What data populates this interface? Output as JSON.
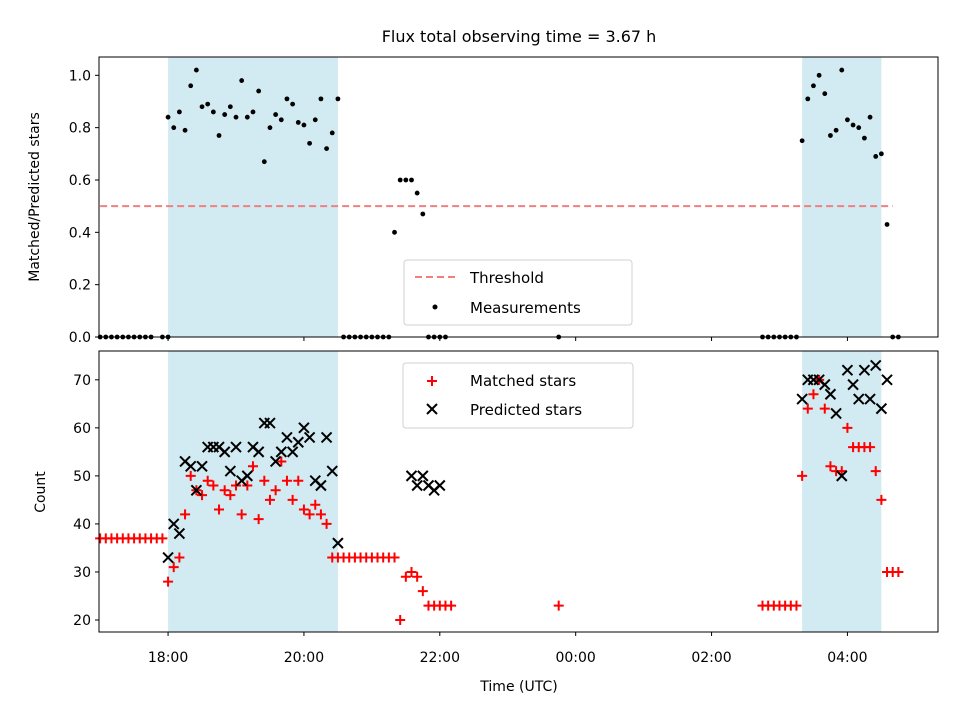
{
  "chart_data": [
    {
      "type": "scatter",
      "title": "Flux total observing time = 3.67 h",
      "xlabel": "",
      "ylabel": "Matched/Predicted stars",
      "xlim": [
        "16:59",
        "05:20"
      ],
      "ylim": [
        0,
        1.07
      ],
      "yticks": [
        0.0,
        0.2,
        0.4,
        0.6,
        0.8,
        1.0
      ],
      "ytick_labels": [
        "0.0",
        "0.2",
        "0.4",
        "0.6",
        "0.8",
        "1.0"
      ],
      "shaded_intervals": [
        [
          "18:00",
          "20:30"
        ],
        [
          "03:20",
          "04:30"
        ]
      ],
      "shade_color": "#add8e6",
      "legend_position": "lower center",
      "threshold": {
        "name": "Threshold",
        "value": 0.5,
        "x_range": [
          "17:00",
          "04:40"
        ],
        "color": "#f08080",
        "style": "dashed"
      },
      "series": [
        {
          "name": "Measurements",
          "marker": "dot",
          "color": "#000000",
          "x": [
            "17:00",
            "17:05",
            "17:10",
            "17:15",
            "17:20",
            "17:25",
            "17:30",
            "17:35",
            "17:40",
            "17:45",
            "17:55",
            "18:00",
            "18:00",
            "18:05",
            "18:10",
            "18:15",
            "18:20",
            "18:25",
            "18:30",
            "18:35",
            "18:40",
            "18:45",
            "18:50",
            "18:55",
            "19:00",
            "19:05",
            "19:10",
            "19:15",
            "19:20",
            "19:25",
            "19:30",
            "19:35",
            "19:40",
            "19:45",
            "19:50",
            "19:55",
            "20:00",
            "20:05",
            "20:10",
            "20:15",
            "20:20",
            "20:25",
            "20:30",
            "20:35",
            "20:40",
            "20:45",
            "20:50",
            "20:55",
            "21:00",
            "21:05",
            "21:10",
            "21:15",
            "21:20",
            "21:25",
            "21:30",
            "21:35",
            "21:40",
            "21:45",
            "21:50",
            "21:55",
            "22:00",
            "22:05",
            "23:45",
            "02:45",
            "02:50",
            "02:55",
            "03:00",
            "03:05",
            "03:10",
            "03:15",
            "03:20",
            "03:25",
            "03:30",
            "03:35",
            "03:40",
            "03:45",
            "03:50",
            "03:55",
            "04:00",
            "04:05",
            "04:10",
            "04:15",
            "04:20",
            "04:25",
            "04:30",
            "04:35",
            "04:40",
            "04:45"
          ],
          "y": [
            0,
            0,
            0,
            0,
            0,
            0,
            0,
            0,
            0,
            0,
            0,
            0,
            0.84,
            0.8,
            0.86,
            0.79,
            0.96,
            1.02,
            0.88,
            0.89,
            0.86,
            0.77,
            0.85,
            0.88,
            0.84,
            0.98,
            0.84,
            0.86,
            0.94,
            0.67,
            0.8,
            0.85,
            0.83,
            0.91,
            0.89,
            0.82,
            0.81,
            0.74,
            0.83,
            0.91,
            0.72,
            0.78,
            0.91,
            0,
            0,
            0,
            0,
            0,
            0,
            0,
            0,
            0,
            0.4,
            0.6,
            0.6,
            0.6,
            0.55,
            0.47,
            0,
            0,
            0,
            0,
            0,
            0,
            0,
            0,
            0,
            0,
            0,
            0,
            0.75,
            0.91,
            0.96,
            1.0,
            0.93,
            0.77,
            0.79,
            1.02,
            0.83,
            0.81,
            0.8,
            0.76,
            0.84,
            0.69,
            0.7,
            0.43,
            0,
            0
          ]
        }
      ]
    },
    {
      "type": "scatter",
      "title": "",
      "xlabel": "Time (UTC)",
      "ylabel": "Count",
      "xlim": [
        "16:59",
        "05:20"
      ],
      "ylim": [
        17.5,
        76
      ],
      "yticks": [
        20,
        30,
        40,
        50,
        60,
        70
      ],
      "ytick_labels": [
        "20",
        "30",
        "40",
        "50",
        "60",
        "70"
      ],
      "xticks": [
        "18:00",
        "20:00",
        "22:00",
        "00:00",
        "02:00",
        "04:00"
      ],
      "xtick_labels": [
        "18:00",
        "20:00",
        "22:00",
        "00:00",
        "02:00",
        "04:00"
      ],
      "shaded_intervals": [
        [
          "18:00",
          "20:30"
        ],
        [
          "03:20",
          "04:30"
        ]
      ],
      "shade_color": "#add8e6",
      "legend_position": "upper center",
      "series": [
        {
          "name": "Matched stars",
          "marker": "plus",
          "color": "#ff0000",
          "x": [
            "17:00",
            "17:05",
            "17:10",
            "17:15",
            "17:20",
            "17:25",
            "17:30",
            "17:35",
            "17:40",
            "17:45",
            "17:50",
            "17:55",
            "18:00",
            "18:05",
            "18:10",
            "18:15",
            "18:20",
            "18:25",
            "18:30",
            "18:35",
            "18:40",
            "18:45",
            "18:50",
            "18:55",
            "19:00",
            "19:05",
            "19:10",
            "19:15",
            "19:20",
            "19:25",
            "19:30",
            "19:35",
            "19:40",
            "19:45",
            "19:50",
            "19:55",
            "20:00",
            "20:05",
            "20:10",
            "20:15",
            "20:20",
            "20:25",
            "20:30",
            "20:35",
            "20:40",
            "20:45",
            "20:50",
            "20:55",
            "21:00",
            "21:05",
            "21:10",
            "21:15",
            "21:20",
            "21:25",
            "21:30",
            "21:35",
            "21:40",
            "21:45",
            "21:50",
            "21:55",
            "22:00",
            "22:05",
            "22:10",
            "23:45",
            "02:45",
            "02:50",
            "02:55",
            "03:00",
            "03:05",
            "03:10",
            "03:15",
            "03:20",
            "03:25",
            "03:30",
            "03:35",
            "03:40",
            "03:45",
            "03:50",
            "03:55",
            "04:00",
            "04:05",
            "04:10",
            "04:15",
            "04:20",
            "04:25",
            "04:30",
            "04:35",
            "04:40",
            "04:45"
          ],
          "y": [
            37,
            37,
            37,
            37,
            37,
            37,
            37,
            37,
            37,
            37,
            37,
            37,
            28,
            31,
            33,
            42,
            50,
            47,
            46,
            49,
            48,
            43,
            47,
            46,
            48,
            42,
            48,
            52,
            41,
            49,
            45,
            47,
            53,
            49,
            45,
            49,
            43,
            42,
            44,
            42,
            40,
            33,
            33,
            33,
            33,
            33,
            33,
            33,
            33,
            33,
            33,
            33,
            33,
            20,
            29,
            30,
            29,
            26,
            23,
            23,
            23,
            23,
            23,
            23,
            23,
            23,
            23,
            23,
            23,
            23,
            23,
            50,
            64,
            67,
            70,
            64,
            52,
            51,
            51,
            60,
            56,
            56,
            56,
            56,
            51,
            45,
            30,
            30,
            30
          ],
          "x_extra": []
        },
        {
          "name": "Predicted stars",
          "marker": "x",
          "color": "#000000",
          "x": [
            "18:00",
            "18:05",
            "18:10",
            "18:15",
            "18:20",
            "18:25",
            "18:30",
            "18:35",
            "18:40",
            "18:45",
            "18:50",
            "18:55",
            "19:00",
            "19:05",
            "19:10",
            "19:15",
            "19:20",
            "19:25",
            "19:30",
            "19:35",
            "19:40",
            "19:45",
            "19:50",
            "19:55",
            "20:00",
            "20:05",
            "20:10",
            "20:15",
            "20:20",
            "20:25",
            "20:30",
            "21:35",
            "21:40",
            "21:45",
            "21:50",
            "21:55",
            "22:00",
            "03:20",
            "03:25",
            "03:30",
            "03:35",
            "03:40",
            "03:45",
            "03:50",
            "03:55",
            "04:00",
            "04:05",
            "04:10",
            "04:15",
            "04:20",
            "04:25",
            "04:30",
            "04:35"
          ],
          "y": [
            33,
            40,
            38,
            53,
            52,
            47,
            52,
            56,
            56,
            56,
            55,
            51,
            56,
            49,
            50,
            56,
            55,
            61,
            61,
            53,
            55,
            58,
            55,
            57,
            60,
            58,
            49,
            48,
            58,
            51,
            36,
            50,
            48,
            50,
            48,
            47,
            48,
            66,
            70,
            70,
            70,
            69,
            67,
            63,
            50,
            72,
            69,
            66,
            72,
            66,
            73,
            64,
            70
          ]
        }
      ]
    }
  ]
}
